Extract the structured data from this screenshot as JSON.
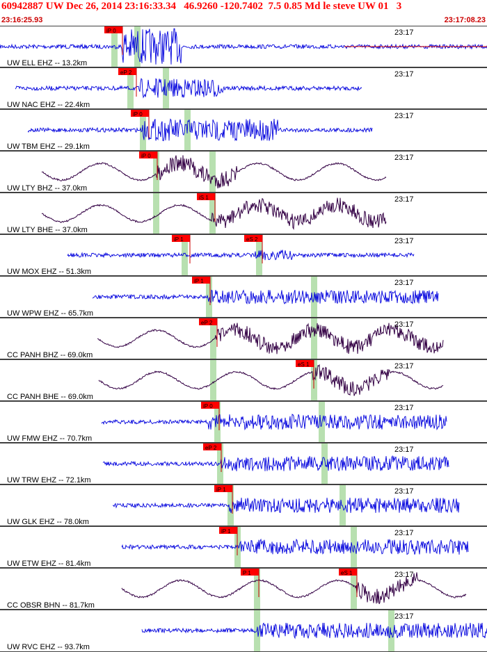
{
  "header": {
    "title": "60942887 UW Dec 26, 2014 23:16:33.34   46.9260 -120.7402  7.5 0.85 Md le steve UW 01   3",
    "start_time": "23:16:25.93",
    "end_time": "23:17:08.23"
  },
  "colors": {
    "pick_fill": "#ff0000",
    "pick_text": "#000000",
    "highlight": "#b8e0b0",
    "wave_blue": "#0000dd",
    "wave_purple": "#330044",
    "border": "#000000",
    "title": "#ff0000"
  },
  "traces": [
    {
      "label": "UW ELL EHZ -- 13.2km",
      "time": "23:17",
      "kind": "short",
      "picks": [
        {
          "label": "iP 0",
          "phase": "P"
        }
      ]
    },
    {
      "label": "UW NAC EHZ -- 22.4km",
      "time": "23:17",
      "kind": "short",
      "picks": [
        {
          "label": "eP 2",
          "phase": "P"
        }
      ]
    },
    {
      "label": "UW TBM EHZ -- 29.1km",
      "time": "23:17",
      "kind": "short",
      "picks": [
        {
          "label": "iP 0",
          "phase": "P"
        }
      ]
    },
    {
      "label": "UW LTY BHZ -- 37.0km",
      "time": "23:17",
      "kind": "long",
      "picks": [
        {
          "label": "iP 0",
          "phase": "P"
        }
      ]
    },
    {
      "label": "UW LTY BHE -- 37.0km",
      "time": "23:17",
      "kind": "long",
      "picks": [
        {
          "label": "iS 1",
          "phase": "S"
        }
      ]
    },
    {
      "label": "UW MOX EHZ -- 51.3km",
      "time": "23:17",
      "kind": "short",
      "picks": [
        {
          "label": "iP 1",
          "phase": "P"
        },
        {
          "label": "eS 2",
          "phase": "S"
        }
      ]
    },
    {
      "label": "UW WPW EHZ -- 65.7km",
      "time": "23:17",
      "kind": "short",
      "picks": [
        {
          "label": "iP 1",
          "phase": "P"
        }
      ]
    },
    {
      "label": "CC PANH BHZ -- 69.0km",
      "time": "23:17",
      "kind": "long",
      "picks": [
        {
          "label": "eP 2",
          "phase": "P"
        }
      ]
    },
    {
      "label": "CC PANH BHE -- 69.0km",
      "time": "23:17",
      "kind": "long",
      "picks": [
        {
          "label": "eS 1",
          "phase": "S"
        }
      ]
    },
    {
      "label": "UW FMW EHZ -- 70.7km",
      "time": "23:17",
      "kind": "short",
      "picks": [
        {
          "label": "iP 0",
          "phase": "P"
        }
      ]
    },
    {
      "label": "UW TRW EHZ -- 72.1km",
      "time": "23:17",
      "kind": "short",
      "picks": [
        {
          "label": "eP 2",
          "phase": "P"
        }
      ]
    },
    {
      "label": "UW GLK EHZ -- 78.0km",
      "time": "23:17",
      "kind": "short",
      "picks": [
        {
          "label": "iP 1",
          "phase": "P"
        }
      ]
    },
    {
      "label": "UW ETW EHZ -- 81.4km",
      "time": "23:17",
      "kind": "short",
      "picks": [
        {
          "label": "iP 1",
          "phase": "P"
        }
      ]
    },
    {
      "label": "CC OBSR BHN -- 81.7km",
      "time": "23:17",
      "kind": "long",
      "picks": [
        {
          "label": "eS 1",
          "phase": "S"
        },
        {
          "label": "P 1",
          "phase": "P"
        }
      ]
    },
    {
      "label": "UW RVC EHZ -- 93.7km",
      "time": "23:17",
      "kind": "short",
      "picks": []
    }
  ]
}
